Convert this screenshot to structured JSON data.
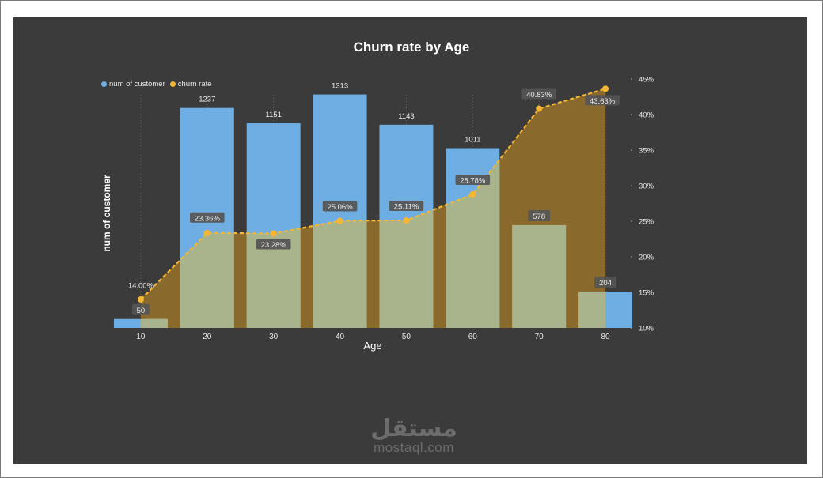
{
  "chart_data": {
    "type": "bar",
    "title": "Churn rate by Age",
    "xlabel": "Age",
    "ylabel": "num of customer",
    "categories": [
      "10",
      "20",
      "30",
      "40",
      "50",
      "60",
      "70",
      "80"
    ],
    "series": [
      {
        "name": "num of customer",
        "type": "bar",
        "axis": "left",
        "values": [
          50,
          1237,
          1151,
          1313,
          1143,
          1011,
          578,
          204
        ],
        "color": "#6eaee3"
      },
      {
        "name": "churn rate",
        "type": "area",
        "axis": "right",
        "values": [
          14.0,
          23.36,
          23.28,
          25.06,
          25.11,
          28.78,
          40.83,
          43.63
        ],
        "labels": [
          "14.00%",
          "23.36%",
          "23.28%",
          "25.06%",
          "25.11%",
          "28.78%",
          "40.83%",
          "43.63%"
        ],
        "color": "#f4b633"
      }
    ],
    "y_left_range": [
      0,
      1400
    ],
    "y_right_range": [
      10,
      45
    ],
    "y_right_ticks": [
      "10%",
      "15%",
      "20%",
      "25%",
      "30%",
      "35%",
      "40%",
      "45%"
    ],
    "legend_position": "top-left",
    "colors": {
      "background": "#3b3b3b",
      "bar": "#6eaee3",
      "line": "#f4b633",
      "area_fill": "#8a6a2c",
      "overlap": "#a9b48c"
    }
  },
  "watermark": {
    "logo": "مستقل",
    "url": "mostaql.com"
  }
}
